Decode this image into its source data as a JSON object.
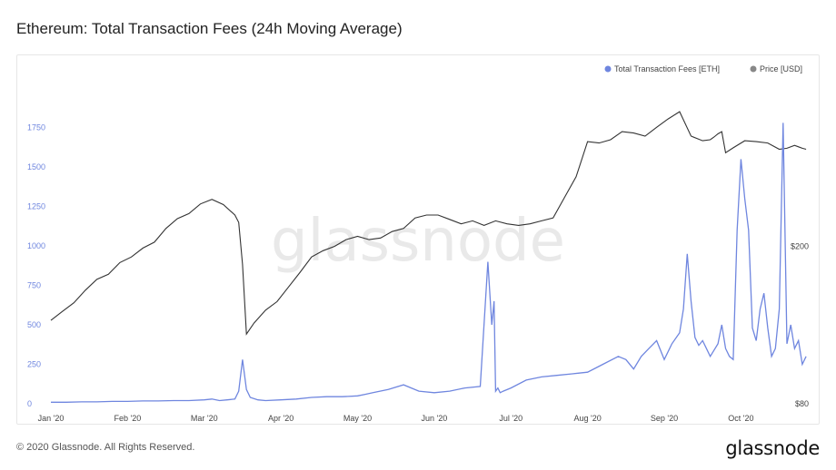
{
  "page": {
    "title": "Ethereum: Total Transaction Fees (24h Moving Average)",
    "copyright": "© 2020 Glassnode. All Rights Reserved.",
    "brand": "glassnode",
    "watermark": "glassnode"
  },
  "colors": {
    "fees": "#6f86df",
    "price": "#333333",
    "legend_price_dot": "#888888",
    "left_axis_text": "#6f86df",
    "right_axis_text": "#444444"
  },
  "chart_data": {
    "type": "line",
    "title": "Ethereum: Total Transaction Fees (24h Moving Average)",
    "legend_position": "top-right",
    "grid": false,
    "x_ticks": [
      "Jan '20",
      "Feb '20",
      "Mar '20",
      "Apr '20",
      "May '20",
      "Jun '20",
      "Jul '20",
      "Aug '20",
      "Sep '20",
      "Oct '20"
    ],
    "x_range": [
      0,
      9.6
    ],
    "y_left": {
      "ticks": [
        0,
        250,
        500,
        750,
        1000,
        1250,
        1500,
        1750
      ],
      "range": [
        0,
        1880
      ]
    },
    "y_right": {
      "ticks": [
        "$80",
        "$200"
      ],
      "scale": "log",
      "tick_values": [
        80,
        200
      ],
      "range": [
        80,
        450
      ]
    },
    "series": [
      {
        "name": "Total Transaction Fees [ETH]",
        "axis": "left",
        "x": [
          0,
          0.2,
          0.4,
          0.6,
          0.8,
          1.0,
          1.2,
          1.4,
          1.6,
          1.8,
          2.0,
          2.1,
          2.2,
          2.3,
          2.4,
          2.45,
          2.5,
          2.55,
          2.6,
          2.7,
          2.8,
          3.0,
          3.2,
          3.4,
          3.6,
          3.8,
          4.0,
          4.1,
          4.2,
          4.4,
          4.6,
          4.8,
          5.0,
          5.2,
          5.4,
          5.6,
          5.7,
          5.75,
          5.78,
          5.8,
          5.83,
          5.86,
          5.9,
          6.0,
          6.2,
          6.4,
          6.6,
          6.8,
          7.0,
          7.2,
          7.4,
          7.5,
          7.6,
          7.7,
          7.8,
          7.9,
          8.0,
          8.1,
          8.2,
          8.25,
          8.3,
          8.35,
          8.4,
          8.45,
          8.5,
          8.6,
          8.7,
          8.75,
          8.8,
          8.85,
          8.9,
          8.95,
          9.0,
          9.05,
          9.1,
          9.15,
          9.2,
          9.25,
          9.3,
          9.35,
          9.4,
          9.45,
          9.5,
          9.55,
          9.6,
          9.65,
          9.7,
          9.75,
          9.8,
          9.85
        ],
        "values": [
          10,
          10,
          12,
          12,
          15,
          15,
          18,
          18,
          20,
          20,
          25,
          30,
          20,
          25,
          30,
          80,
          280,
          90,
          40,
          25,
          20,
          25,
          30,
          40,
          45,
          45,
          50,
          60,
          70,
          90,
          120,
          80,
          70,
          80,
          100,
          110,
          900,
          500,
          650,
          80,
          100,
          70,
          80,
          100,
          150,
          170,
          180,
          190,
          200,
          250,
          300,
          280,
          220,
          300,
          350,
          400,
          280,
          380,
          450,
          600,
          950,
          650,
          420,
          370,
          400,
          300,
          380,
          500,
          350,
          300,
          280,
          1100,
          1550,
          1300,
          1100,
          480,
          400,
          600,
          700,
          480,
          300,
          350,
          600,
          1780,
          380,
          500,
          350,
          400,
          250,
          300
        ],
        "extra": {}
      },
      {
        "name": "Price [USD]",
        "axis": "right",
        "x": [
          0,
          0.15,
          0.3,
          0.45,
          0.6,
          0.75,
          0.9,
          1.05,
          1.2,
          1.35,
          1.5,
          1.65,
          1.8,
          1.95,
          2.1,
          2.25,
          2.4,
          2.45,
          2.5,
          2.55,
          2.65,
          2.8,
          2.95,
          3.1,
          3.25,
          3.4,
          3.55,
          3.7,
          3.85,
          4.0,
          4.15,
          4.3,
          4.45,
          4.6,
          4.75,
          4.9,
          5.05,
          5.2,
          5.35,
          5.5,
          5.65,
          5.8,
          5.95,
          6.1,
          6.25,
          6.4,
          6.55,
          6.7,
          6.85,
          7.0,
          7.15,
          7.3,
          7.45,
          7.6,
          7.75,
          7.9,
          8.05,
          8.2,
          8.35,
          8.5,
          8.6,
          8.65,
          8.7,
          8.75,
          8.8,
          8.9,
          9.05,
          9.2,
          9.35,
          9.5,
          9.6,
          9.7,
          9.75,
          9.8,
          9.85
        ],
        "values": [
          130,
          137,
          144,
          155,
          165,
          170,
          182,
          188,
          198,
          205,
          222,
          235,
          242,
          256,
          263,
          255,
          240,
          230,
          180,
          120,
          128,
          138,
          145,
          158,
          172,
          188,
          195,
          200,
          208,
          212,
          208,
          210,
          218,
          222,
          236,
          240,
          240,
          234,
          228,
          232,
          226,
          232,
          228,
          226,
          228,
          232,
          236,
          266,
          300,
          368,
          365,
          372,
          390,
          387,
          380,
          400,
          420,
          438,
          380,
          370,
          372,
          378,
          385,
          390,
          345,
          355,
          370,
          368,
          365,
          352,
          354,
          360,
          357,
          354,
          352
        ]
      }
    ]
  }
}
